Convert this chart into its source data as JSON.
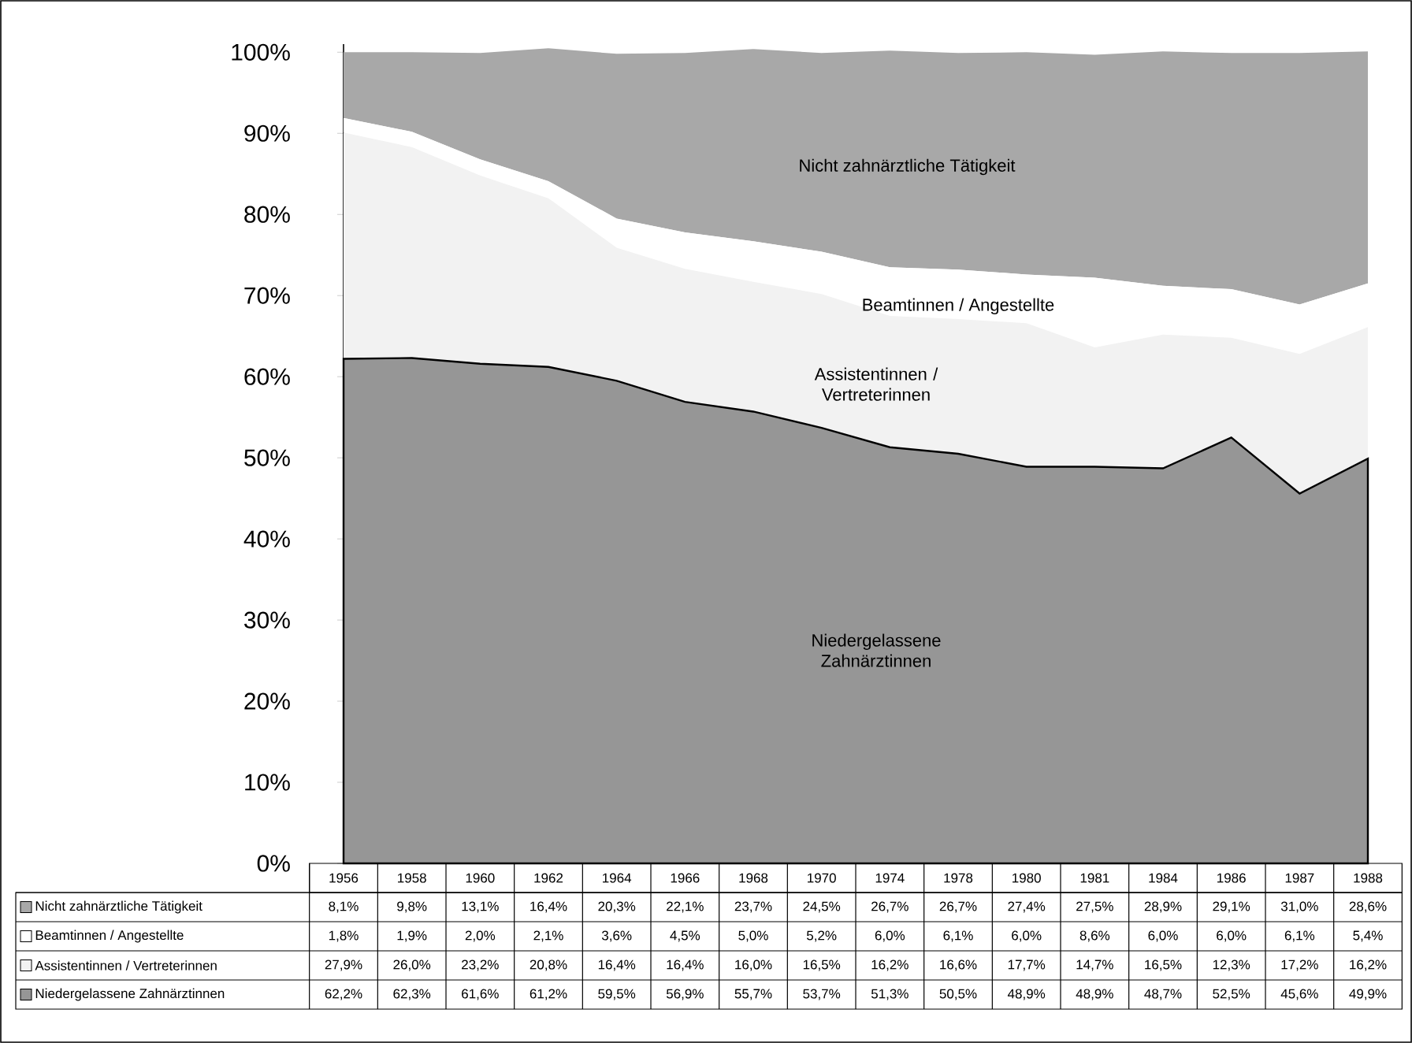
{
  "chart_data": {
    "type": "area",
    "stacked": true,
    "legend": "bottom",
    "categories": [
      "1956",
      "1958",
      "1960",
      "1962",
      "1964",
      "1966",
      "1968",
      "1970",
      "1974",
      "1978",
      "1980",
      "1981",
      "1984",
      "1986",
      "1987",
      "1988"
    ],
    "ylim": [
      0,
      101
    ],
    "yticks": [
      {
        "value": 0,
        "label": "0%"
      },
      {
        "value": 10,
        "label": "10%"
      },
      {
        "value": 20,
        "label": "20%"
      },
      {
        "value": 30,
        "label": "30%"
      },
      {
        "value": 40,
        "label": "40%"
      },
      {
        "value": 50,
        "label": "50%"
      },
      {
        "value": 60,
        "label": "60%"
      },
      {
        "value": 70,
        "label": "70%"
      },
      {
        "value": 80,
        "label": "80%"
      },
      {
        "value": 90,
        "label": "90%"
      },
      {
        "value": 100,
        "label": "100%"
      }
    ],
    "series": [
      {
        "name": "Niedergelassene Zahnärztinnen",
        "color": "#969696",
        "values": [
          62.2,
          62.3,
          61.6,
          61.2,
          59.5,
          56.9,
          55.7,
          53.7,
          51.3,
          50.5,
          48.9,
          48.9,
          48.7,
          52.5,
          45.6,
          49.9
        ],
        "value_labels": [
          "62,2%",
          "62,3%",
          "61,6%",
          "61,2%",
          "59,5%",
          "56,9%",
          "55,7%",
          "53,7%",
          "51,3%",
          "50,5%",
          "48,9%",
          "48,9%",
          "48,7%",
          "52,5%",
          "45,6%",
          "49,9%"
        ]
      },
      {
        "name": "Assistentinnen / Vertreterinnen",
        "color": "#f2f2f2",
        "values": [
          27.9,
          26.0,
          23.2,
          20.8,
          16.4,
          16.4,
          16.0,
          16.5,
          16.2,
          16.6,
          17.7,
          14.7,
          16.5,
          12.3,
          17.2,
          16.2
        ],
        "value_labels": [
          "27,9%",
          "26,0%",
          "23,2%",
          "20,8%",
          "16,4%",
          "16,4%",
          "16,0%",
          "16,5%",
          "16,2%",
          "16,6%",
          "17,7%",
          "14,7%",
          "16,5%",
          "12,3%",
          "17,2%",
          "16,2%"
        ]
      },
      {
        "name": "Beamtinnen / Angestellte",
        "color": "#ffffff",
        "values": [
          1.8,
          1.9,
          2.0,
          2.1,
          3.6,
          4.5,
          5.0,
          5.2,
          6.0,
          6.1,
          6.0,
          8.6,
          6.0,
          6.0,
          6.1,
          5.4
        ],
        "value_labels": [
          "1,8%",
          "1,9%",
          "2,0%",
          "2,1%",
          "3,6%",
          "4,5%",
          "5,0%",
          "5,2%",
          "6,0%",
          "6,1%",
          "6,0%",
          "8,6%",
          "6,0%",
          "6,0%",
          "6,1%",
          "5,4%"
        ]
      },
      {
        "name": "Nicht zahnärztliche Tätigkeit",
        "color": "#a8a8a8",
        "values": [
          8.1,
          9.8,
          13.1,
          16.4,
          20.3,
          22.1,
          23.7,
          24.5,
          26.7,
          26.7,
          27.4,
          27.5,
          28.9,
          29.1,
          31.0,
          28.6
        ],
        "value_labels": [
          "8,1%",
          "9,8%",
          "13,1%",
          "16,4%",
          "20,3%",
          "22,1%",
          "23,7%",
          "24,5%",
          "26,7%",
          "26,7%",
          "27,4%",
          "27,5%",
          "28,9%",
          "29,1%",
          "31,0%",
          "28,6%"
        ]
      }
    ],
    "annotations": [
      "Nicht zahnärztliche Tätigkeit",
      "Beamtinnen / Angestellte",
      "Assistentinnen / Vertreterinnen",
      "Niedergelassene Zahnärztinnen"
    ]
  }
}
